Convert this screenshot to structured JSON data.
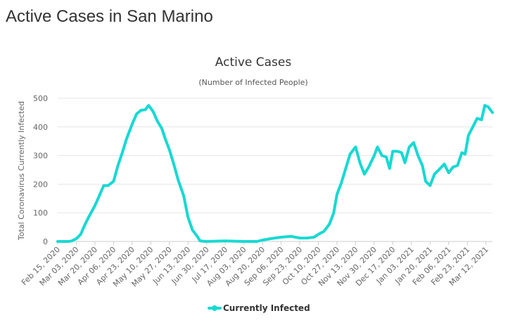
{
  "page": {
    "title": "Active Cases in San Marino"
  },
  "chart_data": {
    "type": "line",
    "title": "Active Cases",
    "subtitle": "(Number of Infected People)",
    "ylabel": "Total Coronavirus Currently Infected",
    "xlabel": "",
    "ylim": [
      0,
      500
    ],
    "yticks": [
      0,
      100,
      200,
      300,
      400,
      500
    ],
    "xlim": [
      "2020-02-15",
      "2021-03-18"
    ],
    "xticks": [
      "Feb 15, 2020",
      "Mar 03, 2020",
      "Mar 20, 2020",
      "Apr 06, 2020",
      "Apr 23, 2020",
      "May 10, 2020",
      "May 27, 2020",
      "Jun 13, 2020",
      "Jun 30, 2020",
      "Jul 17, 2020",
      "Aug 03, 2020",
      "Aug 20, 2020",
      "Sep 06, 2020",
      "Sep 23, 2020",
      "Oct 10, 2020",
      "Oct 27, 2020",
      "Nov 13, 2020",
      "Nov 30, 2020",
      "Dec 17, 2020",
      "Jan 03, 2021",
      "Jan 20, 2021",
      "Feb 06, 2021",
      "Feb 23, 2021",
      "Mar 12, 2021"
    ],
    "grid": true,
    "legend_position": "bottom-center",
    "series": [
      {
        "name": "Currently Infected",
        "color": "#17d9d2",
        "points": [
          [
            "2020-02-15",
            0
          ],
          [
            "2020-02-25",
            0
          ],
          [
            "2020-02-28",
            2
          ],
          [
            "2020-03-03",
            10
          ],
          [
            "2020-03-07",
            25
          ],
          [
            "2020-03-11",
            60
          ],
          [
            "2020-03-15",
            90
          ],
          [
            "2020-03-20",
            125
          ],
          [
            "2020-03-24",
            160
          ],
          [
            "2020-03-28",
            195
          ],
          [
            "2020-04-01",
            195
          ],
          [
            "2020-04-06",
            210
          ],
          [
            "2020-04-10",
            265
          ],
          [
            "2020-04-14",
            310
          ],
          [
            "2020-04-18",
            360
          ],
          [
            "2020-04-23",
            410
          ],
          [
            "2020-04-27",
            445
          ],
          [
            "2020-05-01",
            458
          ],
          [
            "2020-05-05",
            460
          ],
          [
            "2020-05-08",
            475
          ],
          [
            "2020-05-12",
            455
          ],
          [
            "2020-05-16",
            420
          ],
          [
            "2020-05-20",
            395
          ],
          [
            "2020-05-23",
            360
          ],
          [
            "2020-05-27",
            320
          ],
          [
            "2020-05-31",
            270
          ],
          [
            "2020-06-04",
            215
          ],
          [
            "2020-06-09",
            160
          ],
          [
            "2020-06-13",
            85
          ],
          [
            "2020-06-17",
            40
          ],
          [
            "2020-06-21",
            20
          ],
          [
            "2020-06-24",
            2
          ],
          [
            "2020-06-30",
            0
          ],
          [
            "2020-07-17",
            2
          ],
          [
            "2020-08-03",
            0
          ],
          [
            "2020-08-15",
            0
          ],
          [
            "2020-08-20",
            5
          ],
          [
            "2020-08-28",
            10
          ],
          [
            "2020-09-06",
            15
          ],
          [
            "2020-09-15",
            18
          ],
          [
            "2020-09-23",
            12
          ],
          [
            "2020-09-30",
            12
          ],
          [
            "2020-10-06",
            15
          ],
          [
            "2020-10-10",
            25
          ],
          [
            "2020-10-15",
            35
          ],
          [
            "2020-10-20",
            60
          ],
          [
            "2020-10-24",
            100
          ],
          [
            "2020-10-27",
            165
          ],
          [
            "2020-10-31",
            205
          ],
          [
            "2020-11-04",
            255
          ],
          [
            "2020-11-08",
            305
          ],
          [
            "2020-11-13",
            330
          ],
          [
            "2020-11-17",
            275
          ],
          [
            "2020-11-21",
            235
          ],
          [
            "2020-11-25",
            260
          ],
          [
            "2020-11-30",
            300
          ],
          [
            "2020-12-03",
            330
          ],
          [
            "2020-12-07",
            300
          ],
          [
            "2020-12-11",
            295
          ],
          [
            "2020-12-14",
            255
          ],
          [
            "2020-12-17",
            315
          ],
          [
            "2020-12-21",
            315
          ],
          [
            "2020-12-25",
            310
          ],
          [
            "2020-12-28",
            275
          ],
          [
            "2021-01-01",
            330
          ],
          [
            "2021-01-05",
            345
          ],
          [
            "2021-01-09",
            300
          ],
          [
            "2021-01-13",
            265
          ],
          [
            "2021-01-16",
            210
          ],
          [
            "2021-01-20",
            195
          ],
          [
            "2021-01-24",
            235
          ],
          [
            "2021-01-28",
            250
          ],
          [
            "2021-02-02",
            270
          ],
          [
            "2021-02-06",
            240
          ],
          [
            "2021-02-10",
            260
          ],
          [
            "2021-02-14",
            265
          ],
          [
            "2021-02-18",
            310
          ],
          [
            "2021-02-21",
            305
          ],
          [
            "2021-02-24",
            370
          ],
          [
            "2021-02-28",
            400
          ],
          [
            "2021-03-04",
            430
          ],
          [
            "2021-03-08",
            425
          ],
          [
            "2021-03-11",
            475
          ],
          [
            "2021-03-14",
            470
          ],
          [
            "2021-03-18",
            450
          ]
        ]
      }
    ]
  }
}
